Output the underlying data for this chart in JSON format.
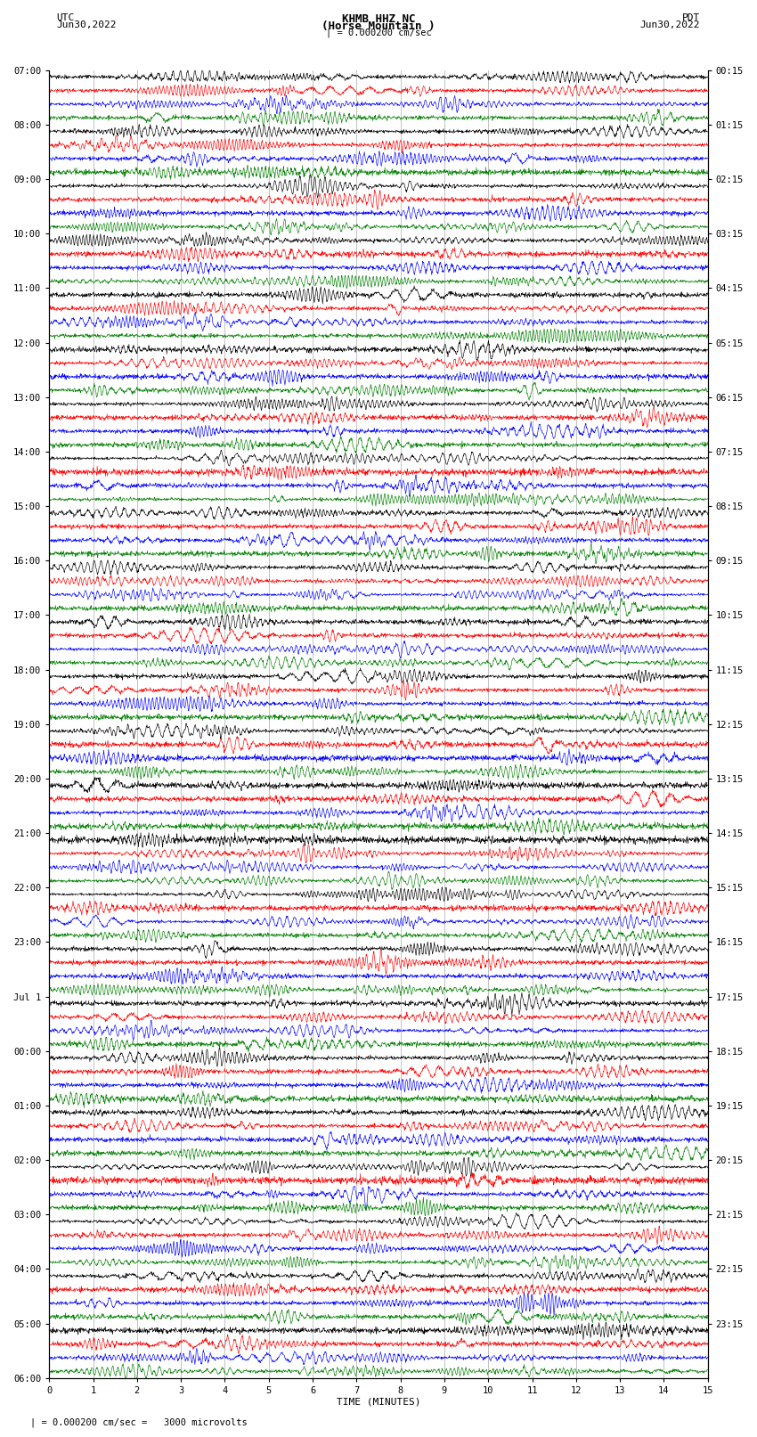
{
  "title_line1": "KHMB HHZ NC",
  "title_line2": "(Horse Mountain )",
  "title_line3": "| = 0.000200 cm/sec",
  "left_label_top": "UTC",
  "left_label_date": "Jun30,2022",
  "right_label_top": "PDT",
  "right_label_date": "Jun30,2022",
  "xlabel": "TIME (MINUTES)",
  "footer": "| = 0.000200 cm/sec =   3000 microvolts",
  "xmin": 0,
  "xmax": 15,
  "trace_colors": [
    "black",
    "red",
    "blue",
    "green"
  ],
  "left_hour_labels": [
    "07:00",
    "08:00",
    "09:00",
    "10:00",
    "11:00",
    "12:00",
    "13:00",
    "14:00",
    "15:00",
    "16:00",
    "17:00",
    "18:00",
    "19:00",
    "20:00",
    "21:00",
    "22:00",
    "23:00",
    "Jul 1",
    "00:00",
    "01:00",
    "02:00",
    "03:00",
    "04:00",
    "05:00",
    "06:00"
  ],
  "right_hour_labels": [
    "00:15",
    "01:15",
    "02:15",
    "03:15",
    "04:15",
    "05:15",
    "06:15",
    "07:15",
    "08:15",
    "09:15",
    "10:15",
    "11:15",
    "12:15",
    "13:15",
    "14:15",
    "15:15",
    "16:15",
    "17:15",
    "18:15",
    "19:15",
    "20:15",
    "21:15",
    "22:15",
    "23:15"
  ],
  "n_hours": 24,
  "traces_per_hour": 4,
  "bg_color": "white",
  "grid_color": "#aaaaaa"
}
